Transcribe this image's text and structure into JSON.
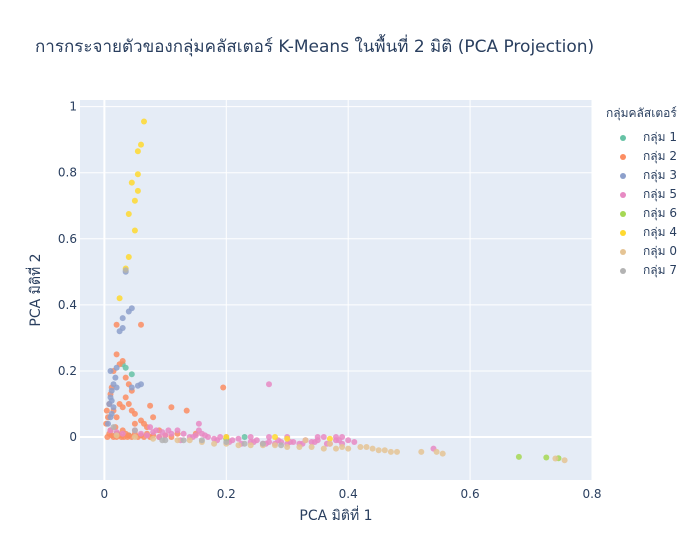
{
  "chart_data": {
    "type": "scatter",
    "title": "การกระจายตัวของกลุ่มคลัสเตอร์ K-Means ในพื้นที่ 2 มิติ (PCA Projection)",
    "xlabel": "PCA มิติที่ 1",
    "ylabel": "PCA มิติที่ 2",
    "xlim": [
      -0.04,
      0.8
    ],
    "ylim": [
      -0.13,
      1.02
    ],
    "xticks": [
      0,
      0.2,
      0.4,
      0.6,
      0.8
    ],
    "xtick_labels": [
      "0",
      "0.2",
      "0.4",
      "0.6",
      "0.8"
    ],
    "yticks": [
      0,
      0.2,
      0.4,
      0.6,
      0.8,
      1
    ],
    "ytick_labels": [
      "0",
      "0.2",
      "0.4",
      "0.6",
      "0.8",
      "1"
    ],
    "grid": true,
    "legend_title": "กลุ่มคลัสเตอร์",
    "legend_position": "right",
    "series": [
      {
        "name": "กลุ่ม 1",
        "color": "#66c2a5",
        "points": [
          [
            0.03,
            0.22
          ],
          [
            0.035,
            0.21
          ],
          [
            0.045,
            0.19
          ],
          [
            0.2,
            -0.005
          ],
          [
            0.23,
            0.0
          ],
          [
            0.02,
            0.01
          ],
          [
            0.04,
            0.005
          ]
        ]
      },
      {
        "name": "กลุ่ม 2",
        "color": "#fc8d62",
        "points": [
          [
            0.005,
            0.0
          ],
          [
            0.008,
            0.01
          ],
          [
            0.01,
            0.02
          ],
          [
            0.012,
            0.005
          ],
          [
            0.015,
            0.0
          ],
          [
            0.018,
            0.03
          ],
          [
            0.02,
            0.0
          ],
          [
            0.022,
            0.01
          ],
          [
            0.025,
            0.005
          ],
          [
            0.028,
            0.0
          ],
          [
            0.03,
            0.02
          ],
          [
            0.032,
            0.0
          ],
          [
            0.035,
            0.01
          ],
          [
            0.038,
            0.0
          ],
          [
            0.04,
            0.005
          ],
          [
            0.045,
            0.0
          ],
          [
            0.05,
            0.01
          ],
          [
            0.055,
            0.0
          ],
          [
            0.06,
            0.005
          ],
          [
            0.065,
            0.0
          ],
          [
            0.07,
            0.01
          ],
          [
            0.075,
            0.0
          ],
          [
            0.08,
            0.005
          ],
          [
            0.09,
            0.0
          ],
          [
            0.1,
            0.005
          ],
          [
            0.11,
            0.0
          ],
          [
            0.12,
            0.01
          ],
          [
            0.003,
            0.04
          ],
          [
            0.006,
            0.06
          ],
          [
            0.004,
            0.08
          ],
          [
            0.008,
            0.1
          ],
          [
            0.01,
            0.13
          ],
          [
            0.012,
            0.15
          ],
          [
            0.015,
            0.2
          ],
          [
            0.02,
            0.25
          ],
          [
            0.025,
            0.22
          ],
          [
            0.03,
            0.23
          ],
          [
            0.035,
            0.18
          ],
          [
            0.04,
            0.16
          ],
          [
            0.045,
            0.14
          ],
          [
            0.035,
            0.12
          ],
          [
            0.04,
            0.1
          ],
          [
            0.045,
            0.08
          ],
          [
            0.05,
            0.07
          ],
          [
            0.06,
            0.05
          ],
          [
            0.065,
            0.04
          ],
          [
            0.02,
            0.34
          ],
          [
            0.06,
            0.34
          ],
          [
            0.025,
            0.1
          ],
          [
            0.03,
            0.09
          ],
          [
            0.015,
            0.08
          ],
          [
            0.08,
            0.06
          ],
          [
            0.11,
            0.09
          ],
          [
            0.135,
            0.08
          ],
          [
            0.15,
            0.01
          ],
          [
            0.195,
            0.15
          ],
          [
            0.075,
            0.095
          ],
          [
            0.02,
            0.06
          ],
          [
            0.05,
            0.04
          ],
          [
            0.07,
            0.03
          ],
          [
            0.09,
            0.02
          ]
        ]
      },
      {
        "name": "กลุ่ม 3",
        "color": "#8da0cb",
        "points": [
          [
            0.008,
            0.1
          ],
          [
            0.01,
            0.12
          ],
          [
            0.012,
            0.14
          ],
          [
            0.015,
            0.16
          ],
          [
            0.018,
            0.18
          ],
          [
            0.01,
            0.2
          ],
          [
            0.02,
            0.21
          ],
          [
            0.012,
            0.11
          ],
          [
            0.015,
            0.09
          ],
          [
            0.02,
            0.15
          ],
          [
            0.025,
            0.32
          ],
          [
            0.03,
            0.33
          ],
          [
            0.04,
            0.38
          ],
          [
            0.045,
            0.39
          ],
          [
            0.03,
            0.36
          ],
          [
            0.035,
            0.5
          ],
          [
            0.06,
            0.16
          ],
          [
            0.055,
            0.155
          ],
          [
            0.045,
            0.15
          ],
          [
            0.01,
            0.06
          ],
          [
            0.006,
            0.04
          ],
          [
            0.012,
            0.07
          ]
        ]
      },
      {
        "name": "กลุ่ม 5",
        "color": "#e78ac3",
        "points": [
          [
            0.01,
            0.02
          ],
          [
            0.02,
            0.015
          ],
          [
            0.03,
            0.01
          ],
          [
            0.05,
            0.02
          ],
          [
            0.06,
            0.01
          ],
          [
            0.07,
            0.005
          ],
          [
            0.08,
            0.015
          ],
          [
            0.09,
            0.0
          ],
          [
            0.1,
            0.005
          ],
          [
            0.11,
            0.01
          ],
          [
            0.12,
            0.02
          ],
          [
            0.13,
            0.01
          ],
          [
            0.14,
            0.0
          ],
          [
            0.15,
            0.005
          ],
          [
            0.16,
            0.01
          ],
          [
            0.17,
            0.0
          ],
          [
            0.18,
            -0.005
          ],
          [
            0.19,
            0.0
          ],
          [
            0.21,
            -0.01
          ],
          [
            0.22,
            -0.005
          ],
          [
            0.24,
            -0.015
          ],
          [
            0.25,
            -0.01
          ],
          [
            0.26,
            -0.02
          ],
          [
            0.27,
            -0.015
          ],
          [
            0.28,
            -0.02
          ],
          [
            0.29,
            -0.015
          ],
          [
            0.3,
            -0.02
          ],
          [
            0.31,
            -0.015
          ],
          [
            0.32,
            -0.02
          ],
          [
            0.33,
            -0.01
          ],
          [
            0.34,
            -0.015
          ],
          [
            0.35,
            -0.01
          ],
          [
            0.36,
            0.0
          ],
          [
            0.37,
            -0.02
          ],
          [
            0.38,
            -0.01
          ],
          [
            0.39,
            -0.02
          ],
          [
            0.4,
            -0.01
          ],
          [
            0.41,
            -0.015
          ],
          [
            0.3,
            0.0
          ],
          [
            0.27,
            0.0
          ],
          [
            0.24,
            0.0
          ],
          [
            0.2,
            0.0
          ],
          [
            0.155,
            0.04
          ],
          [
            0.27,
            0.16
          ],
          [
            0.155,
            0.02
          ],
          [
            0.35,
            0.0
          ],
          [
            0.38,
            0.0
          ],
          [
            0.39,
            0.0
          ],
          [
            0.54,
            -0.035
          ],
          [
            0.105,
            0.02
          ],
          [
            0.125,
            -0.01
          ],
          [
            0.145,
            0.0
          ],
          [
            0.165,
            0.005
          ],
          [
            0.185,
            -0.01
          ],
          [
            0.205,
            -0.015
          ],
          [
            0.225,
            -0.02
          ],
          [
            0.245,
            -0.015
          ],
          [
            0.265,
            -0.02
          ],
          [
            0.285,
            -0.01
          ],
          [
            0.305,
            -0.015
          ],
          [
            0.325,
            -0.02
          ],
          [
            0.345,
            -0.015
          ],
          [
            0.365,
            -0.02
          ],
          [
            0.385,
            -0.01
          ],
          [
            0.075,
            0.03
          ],
          [
            0.085,
            0.02
          ],
          [
            0.095,
            0.015
          ]
        ]
      },
      {
        "name": "กลุ่ม 6",
        "color": "#a6d854",
        "points": [
          [
            0.68,
            -0.06
          ],
          [
            0.725,
            -0.062
          ],
          [
            0.745,
            -0.064
          ],
          [
            0.2,
            -0.005
          ]
        ]
      },
      {
        "name": "กลุ่ม 4",
        "color": "#ffd92f",
        "points": [
          [
            0.065,
            0.955
          ],
          [
            0.06,
            0.885
          ],
          [
            0.055,
            0.865
          ],
          [
            0.055,
            0.795
          ],
          [
            0.045,
            0.77
          ],
          [
            0.055,
            0.745
          ],
          [
            0.05,
            0.715
          ],
          [
            0.04,
            0.675
          ],
          [
            0.05,
            0.625
          ],
          [
            0.04,
            0.545
          ],
          [
            0.035,
            0.51
          ],
          [
            0.025,
            0.42
          ],
          [
            0.2,
            0.0
          ],
          [
            0.28,
            0.0
          ],
          [
            0.3,
            -0.005
          ],
          [
            0.37,
            -0.005
          ]
        ]
      },
      {
        "name": "กลุ่ม 0",
        "color": "#e5c494",
        "points": [
          [
            0.02,
            0.005
          ],
          [
            0.05,
            0.0
          ],
          [
            0.08,
            -0.005
          ],
          [
            0.12,
            -0.01
          ],
          [
            0.14,
            -0.01
          ],
          [
            0.16,
            -0.015
          ],
          [
            0.18,
            -0.02
          ],
          [
            0.2,
            -0.02
          ],
          [
            0.22,
            -0.025
          ],
          [
            0.24,
            -0.025
          ],
          [
            0.26,
            -0.025
          ],
          [
            0.28,
            -0.025
          ],
          [
            0.3,
            -0.03
          ],
          [
            0.32,
            -0.03
          ],
          [
            0.34,
            -0.03
          ],
          [
            0.36,
            -0.035
          ],
          [
            0.38,
            -0.035
          ],
          [
            0.4,
            -0.035
          ],
          [
            0.42,
            -0.03
          ],
          [
            0.44,
            -0.035
          ],
          [
            0.45,
            -0.04
          ],
          [
            0.46,
            -0.04
          ],
          [
            0.47,
            -0.045
          ],
          [
            0.48,
            -0.045
          ],
          [
            0.52,
            -0.045
          ],
          [
            0.545,
            -0.045
          ],
          [
            0.555,
            -0.05
          ],
          [
            0.74,
            -0.065
          ],
          [
            0.755,
            -0.07
          ],
          [
            0.33,
            -0.01
          ],
          [
            0.37,
            -0.02
          ],
          [
            0.43,
            -0.03
          ],
          [
            0.39,
            -0.03
          ]
        ]
      },
      {
        "name": "กลุ่ม 7",
        "color": "#b3b3b3",
        "points": [
          [
            0.1,
            -0.01
          ],
          [
            0.13,
            -0.01
          ],
          [
            0.16,
            -0.01
          ],
          [
            0.2,
            -0.015
          ],
          [
            0.23,
            -0.02
          ],
          [
            0.26,
            -0.02
          ],
          [
            0.29,
            -0.025
          ],
          [
            0.095,
            -0.01
          ],
          [
            0.035,
            0.505
          ],
          [
            0.015,
            0.03
          ],
          [
            0.05,
            0.02
          ]
        ]
      }
    ]
  }
}
